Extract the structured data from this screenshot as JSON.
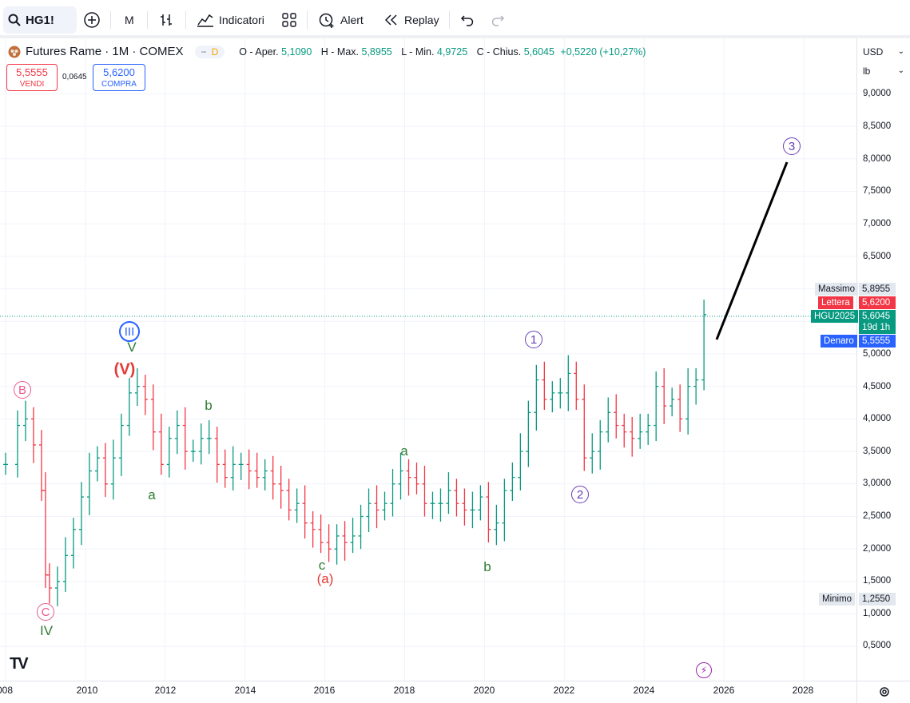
{
  "toolbar": {
    "symbol": "HG1!",
    "interval": "M",
    "indicators_label": "Indicatori",
    "alert_label": "Alert",
    "replay_label": "Replay"
  },
  "legend": {
    "title": "Futures Rame · 1M · COMEX",
    "badge_d": "D",
    "open_label": "O - Aper.",
    "open": "5,1090",
    "high_label": "H - Max.",
    "high": "5,8955",
    "low_label": "L - Min.",
    "low": "4,9725",
    "close_label": "C - Chius.",
    "close": "5,6045",
    "change": "+0,5220 (+10,27%)"
  },
  "trade": {
    "sell_price": "5,5555",
    "sell_label": "VENDI",
    "spread": "0,0645",
    "buy_price": "5,6200",
    "buy_label": "COMPRA"
  },
  "scale": {
    "currency": "USD",
    "unit": "lb",
    "ticks": [
      "9,0000",
      "8,5000",
      "8,0000",
      "7,5000",
      "7,0000",
      "6,5000",
      "5,0000",
      "4,5000",
      "4,0000",
      "3,5000",
      "3,0000",
      "2,5000",
      "2,0000",
      "1,5000",
      "1,0000",
      "0,5000"
    ]
  },
  "tags": {
    "max_label": "Massimo",
    "max_value": "5,8955",
    "ask_label": "Lettera",
    "ask_value": "5,6200",
    "contract_label": "HGU2025",
    "contract_value": "5,6045",
    "contract_countdown": "19d 1h",
    "bid_label": "Denaro",
    "bid_value": "5,5555",
    "min_label": "Minimo",
    "min_value": "1,2550"
  },
  "time_axis": [
    "008",
    "2010",
    "2012",
    "2014",
    "2016",
    "2018",
    "2020",
    "2022",
    "2024",
    "2026",
    "2028"
  ],
  "waves": {
    "B": "B",
    "C": "C",
    "IV": "IV",
    "V_big": "(V)",
    "V_small": "V",
    "III": "III",
    "a1": "a",
    "b1": "b",
    "c1": "c",
    "a_paren": "(a)",
    "a2": "a",
    "b2": "b",
    "w1": "1",
    "w2": "2",
    "w3": "3"
  },
  "colors": {
    "up": "#089981",
    "down": "#f23645",
    "accent": "#2962ff",
    "purple": "#6a3fb5",
    "green": "#2e7d32",
    "pink": "#e85a8f",
    "red": "#e53935"
  },
  "chart_data": {
    "type": "ohlc-monthly",
    "symbol": "HG1!",
    "last": 5.6045,
    "high": 5.8955,
    "low": 1.255,
    "ylim": [
      0,
      9.5
    ],
    "x_range": [
      "2008",
      "2028"
    ],
    "bars": [
      {
        "t": 2008.0,
        "c": 3.3
      },
      {
        "t": 2008.3,
        "c": 3.9
      },
      {
        "t": 2008.5,
        "c": 4.0
      },
      {
        "t": 2008.7,
        "c": 3.6
      },
      {
        "t": 2008.9,
        "c": 2.9
      },
      {
        "t": 2009.0,
        "c": 1.6
      },
      {
        "t": 2009.1,
        "c": 1.4
      },
      {
        "t": 2009.3,
        "c": 1.5
      },
      {
        "t": 2009.5,
        "c": 1.9
      },
      {
        "t": 2009.7,
        "c": 2.3
      },
      {
        "t": 2009.9,
        "c": 2.8
      },
      {
        "t": 2010.1,
        "c": 3.2
      },
      {
        "t": 2010.3,
        "c": 3.4
      },
      {
        "t": 2010.5,
        "c": 3.0
      },
      {
        "t": 2010.7,
        "c": 3.4
      },
      {
        "t": 2010.9,
        "c": 3.9
      },
      {
        "t": 2011.1,
        "c": 4.4
      },
      {
        "t": 2011.3,
        "c": 4.5
      },
      {
        "t": 2011.5,
        "c": 4.3
      },
      {
        "t": 2011.7,
        "c": 3.8
      },
      {
        "t": 2011.9,
        "c": 3.3
      },
      {
        "t": 2012.1,
        "c": 3.7
      },
      {
        "t": 2012.3,
        "c": 3.9
      },
      {
        "t": 2012.5,
        "c": 3.5
      },
      {
        "t": 2012.7,
        "c": 3.5
      },
      {
        "t": 2012.9,
        "c": 3.7
      },
      {
        "t": 2013.1,
        "c": 3.7
      },
      {
        "t": 2013.3,
        "c": 3.3
      },
      {
        "t": 2013.5,
        "c": 3.1
      },
      {
        "t": 2013.7,
        "c": 3.3
      },
      {
        "t": 2013.9,
        "c": 3.3
      },
      {
        "t": 2014.1,
        "c": 3.2
      },
      {
        "t": 2014.3,
        "c": 3.1
      },
      {
        "t": 2014.5,
        "c": 3.2
      },
      {
        "t": 2014.7,
        "c": 3.0
      },
      {
        "t": 2014.9,
        "c": 2.9
      },
      {
        "t": 2015.1,
        "c": 2.6
      },
      {
        "t": 2015.3,
        "c": 2.7
      },
      {
        "t": 2015.5,
        "c": 2.4
      },
      {
        "t": 2015.7,
        "c": 2.3
      },
      {
        "t": 2015.9,
        "c": 2.1
      },
      {
        "t": 2016.1,
        "c": 2.0
      },
      {
        "t": 2016.3,
        "c": 2.2
      },
      {
        "t": 2016.5,
        "c": 2.1
      },
      {
        "t": 2016.7,
        "c": 2.2
      },
      {
        "t": 2016.9,
        "c": 2.5
      },
      {
        "t": 2017.1,
        "c": 2.7
      },
      {
        "t": 2017.3,
        "c": 2.6
      },
      {
        "t": 2017.5,
        "c": 2.7
      },
      {
        "t": 2017.7,
        "c": 3.0
      },
      {
        "t": 2017.9,
        "c": 3.2
      },
      {
        "t": 2018.1,
        "c": 3.1
      },
      {
        "t": 2018.3,
        "c": 3.0
      },
      {
        "t": 2018.5,
        "c": 2.7
      },
      {
        "t": 2018.7,
        "c": 2.7
      },
      {
        "t": 2018.9,
        "c": 2.7
      },
      {
        "t": 2019.1,
        "c": 2.9
      },
      {
        "t": 2019.3,
        "c": 2.7
      },
      {
        "t": 2019.5,
        "c": 2.6
      },
      {
        "t": 2019.7,
        "c": 2.6
      },
      {
        "t": 2019.9,
        "c": 2.8
      },
      {
        "t": 2020.1,
        "c": 2.3
      },
      {
        "t": 2020.3,
        "c": 2.4
      },
      {
        "t": 2020.5,
        "c": 2.9
      },
      {
        "t": 2020.7,
        "c": 3.1
      },
      {
        "t": 2020.9,
        "c": 3.5
      },
      {
        "t": 2021.1,
        "c": 4.1
      },
      {
        "t": 2021.3,
        "c": 4.6
      },
      {
        "t": 2021.5,
        "c": 4.3
      },
      {
        "t": 2021.7,
        "c": 4.4
      },
      {
        "t": 2021.9,
        "c": 4.4
      },
      {
        "t": 2022.1,
        "c": 4.7
      },
      {
        "t": 2022.3,
        "c": 4.3
      },
      {
        "t": 2022.5,
        "c": 3.4
      },
      {
        "t": 2022.7,
        "c": 3.5
      },
      {
        "t": 2022.9,
        "c": 3.8
      },
      {
        "t": 2023.1,
        "c": 4.1
      },
      {
        "t": 2023.3,
        "c": 3.9
      },
      {
        "t": 2023.5,
        "c": 3.8
      },
      {
        "t": 2023.7,
        "c": 3.7
      },
      {
        "t": 2023.9,
        "c": 3.8
      },
      {
        "t": 2024.1,
        "c": 3.9
      },
      {
        "t": 2024.3,
        "c": 4.5
      },
      {
        "t": 2024.5,
        "c": 4.2
      },
      {
        "t": 2024.7,
        "c": 4.3
      },
      {
        "t": 2024.9,
        "c": 4.0
      },
      {
        "t": 2025.1,
        "c": 4.5
      },
      {
        "t": 2025.3,
        "c": 4.6
      },
      {
        "t": 2025.5,
        "c": 5.6045
      }
    ]
  }
}
